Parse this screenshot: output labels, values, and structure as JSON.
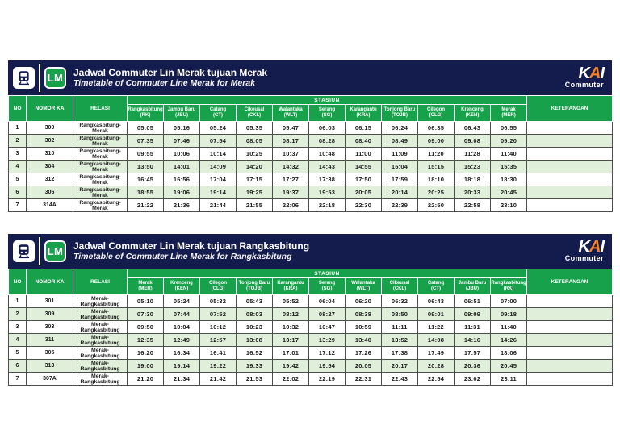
{
  "brand": {
    "kai_k": "K",
    "kai_a": "A",
    "kai_i": "I",
    "commuter": "Commuter",
    "line_badge": "LM",
    "navy": "#141B4D",
    "green": "#18A14B",
    "orange": "#F58220",
    "row_alt": "#E0EFDA"
  },
  "header_labels": {
    "no": "NO",
    "nomor_ka": "NOMOR KA",
    "relasi": "RELASI",
    "stasiun": "STASIUN",
    "keterangan": "KETERANGAN"
  },
  "tables": [
    {
      "title": "Jadwal Commuter Lin Merak tujuan Merak",
      "subtitle": "Timetable of Commuter Line Merak for Merak",
      "stations": [
        {
          "name": "Rangkasbitung",
          "code": "(RK)"
        },
        {
          "name": "Jambu Baru",
          "code": "(JBU)"
        },
        {
          "name": "Catang",
          "code": "(CT)"
        },
        {
          "name": "Cikeusal",
          "code": "(CKL)"
        },
        {
          "name": "Walantaka",
          "code": "(WLT)"
        },
        {
          "name": "Serang",
          "code": "(SG)"
        },
        {
          "name": "Karangantu",
          "code": "(KRA)"
        },
        {
          "name": "Tonjong Baru",
          "code": "(TOJB)"
        },
        {
          "name": "Cilegon",
          "code": "(CLG)"
        },
        {
          "name": "Krenceng",
          "code": "(KEN)"
        },
        {
          "name": "Merak",
          "code": "(MER)"
        }
      ],
      "rows": [
        {
          "no": "1",
          "nomor_ka": "300",
          "relasi": "Rangkasbitung-Merak",
          "times": [
            "05:05",
            "05:16",
            "05:24",
            "05:35",
            "05:47",
            "06:03",
            "06:15",
            "06:24",
            "06:35",
            "06:43",
            "06:55"
          ],
          "keterangan": ""
        },
        {
          "no": "2",
          "nomor_ka": "302",
          "relasi": "Rangkasbitung-Merak",
          "times": [
            "07:35",
            "07:46",
            "07:54",
            "08:05",
            "08:17",
            "08:28",
            "08:40",
            "08:49",
            "09:00",
            "09:08",
            "09:20"
          ],
          "keterangan": ""
        },
        {
          "no": "3",
          "nomor_ka": "310",
          "relasi": "Rangkasbitung-Merak",
          "times": [
            "09:55",
            "10:06",
            "10:14",
            "10:25",
            "10:37",
            "10:48",
            "11:00",
            "11:09",
            "11:20",
            "11:28",
            "11:40"
          ],
          "keterangan": ""
        },
        {
          "no": "4",
          "nomor_ka": "304",
          "relasi": "Rangkasbitung-Merak",
          "times": [
            "13:50",
            "14:01",
            "14:09",
            "14:20",
            "14:32",
            "14:43",
            "14:55",
            "15:04",
            "15:15",
            "15:23",
            "15:35"
          ],
          "keterangan": ""
        },
        {
          "no": "5",
          "nomor_ka": "312",
          "relasi": "Rangkasbitung-Merak",
          "times": [
            "16:45",
            "16:56",
            "17:04",
            "17:15",
            "17:27",
            "17:38",
            "17:50",
            "17:59",
            "18:10",
            "18:18",
            "18:30"
          ],
          "keterangan": ""
        },
        {
          "no": "6",
          "nomor_ka": "306",
          "relasi": "Rangkasbitung-Merak",
          "times": [
            "18:55",
            "19:06",
            "19:14",
            "19:25",
            "19:37",
            "19:53",
            "20:05",
            "20:14",
            "20:25",
            "20:33",
            "20:45"
          ],
          "keterangan": ""
        },
        {
          "no": "7",
          "nomor_ka": "314A",
          "relasi": "Rangkasbitung-Merak",
          "times": [
            "21:22",
            "21:36",
            "21:44",
            "21:55",
            "22:06",
            "22:18",
            "22:30",
            "22:39",
            "22:50",
            "22:58",
            "23:10"
          ],
          "keterangan": ""
        }
      ]
    },
    {
      "title": "Jadwal Commuter Lin Merak tujuan Rangkasbitung",
      "subtitle": "Timetable of Commuter Line Merak for Rangkasbitung",
      "stations": [
        {
          "name": "Merak",
          "code": "(MER)"
        },
        {
          "name": "Krenceng",
          "code": "(KEN)"
        },
        {
          "name": "Cilegon",
          "code": "(CLG)"
        },
        {
          "name": "Tonjong Baru",
          "code": "(TOJB)"
        },
        {
          "name": "Karangantu",
          "code": "(KRA)"
        },
        {
          "name": "Serang",
          "code": "(SG)"
        },
        {
          "name": "Walantaka",
          "code": "(WLT)"
        },
        {
          "name": "Cikeusal",
          "code": "(CKL)"
        },
        {
          "name": "Catang",
          "code": "(CT)"
        },
        {
          "name": "Jambu Baru",
          "code": "(JBU)"
        },
        {
          "name": "Rangkasbitung",
          "code": "(RK)"
        }
      ],
      "rows": [
        {
          "no": "1",
          "nomor_ka": "301",
          "relasi": "Merak-Rangkasbitung",
          "times": [
            "05:10",
            "05:24",
            "05:32",
            "05:43",
            "05:52",
            "06:04",
            "06:20",
            "06:32",
            "06:43",
            "06:51",
            "07:00"
          ],
          "keterangan": ""
        },
        {
          "no": "2",
          "nomor_ka": "309",
          "relasi": "Merak-Rangkasbitung",
          "times": [
            "07:30",
            "07:44",
            "07:52",
            "08:03",
            "08:12",
            "08:27",
            "08:38",
            "08:50",
            "09:01",
            "09:09",
            "09:18"
          ],
          "keterangan": ""
        },
        {
          "no": "3",
          "nomor_ka": "303",
          "relasi": "Merak-Rangkasbitung",
          "times": [
            "09:50",
            "10:04",
            "10:12",
            "10:23",
            "10:32",
            "10:47",
            "10:59",
            "11:11",
            "11:22",
            "11:31",
            "11:40"
          ],
          "keterangan": ""
        },
        {
          "no": "4",
          "nomor_ka": "311",
          "relasi": "Merak-Rangkasbitung",
          "times": [
            "12:35",
            "12:49",
            "12:57",
            "13:08",
            "13:17",
            "13:29",
            "13:40",
            "13:52",
            "14:08",
            "14:16",
            "14:26"
          ],
          "keterangan": ""
        },
        {
          "no": "5",
          "nomor_ka": "305",
          "relasi": "Merak-Rangkasbitung",
          "times": [
            "16:20",
            "16:34",
            "16:41",
            "16:52",
            "17:01",
            "17:12",
            "17:26",
            "17:38",
            "17:49",
            "17:57",
            "18:06"
          ],
          "keterangan": ""
        },
        {
          "no": "6",
          "nomor_ka": "313",
          "relasi": "Merak-Rangkasbitung",
          "times": [
            "19:00",
            "19:14",
            "19:22",
            "19:33",
            "19:42",
            "19:54",
            "20:05",
            "20:17",
            "20:28",
            "20:36",
            "20:45"
          ],
          "keterangan": ""
        },
        {
          "no": "7",
          "nomor_ka": "307A",
          "relasi": "Merak-Rangkasbitung",
          "times": [
            "21:20",
            "21:34",
            "21:42",
            "21:53",
            "22:02",
            "22:19",
            "22:31",
            "22:43",
            "22:54",
            "23:02",
            "23:11"
          ],
          "keterangan": ""
        }
      ]
    }
  ]
}
